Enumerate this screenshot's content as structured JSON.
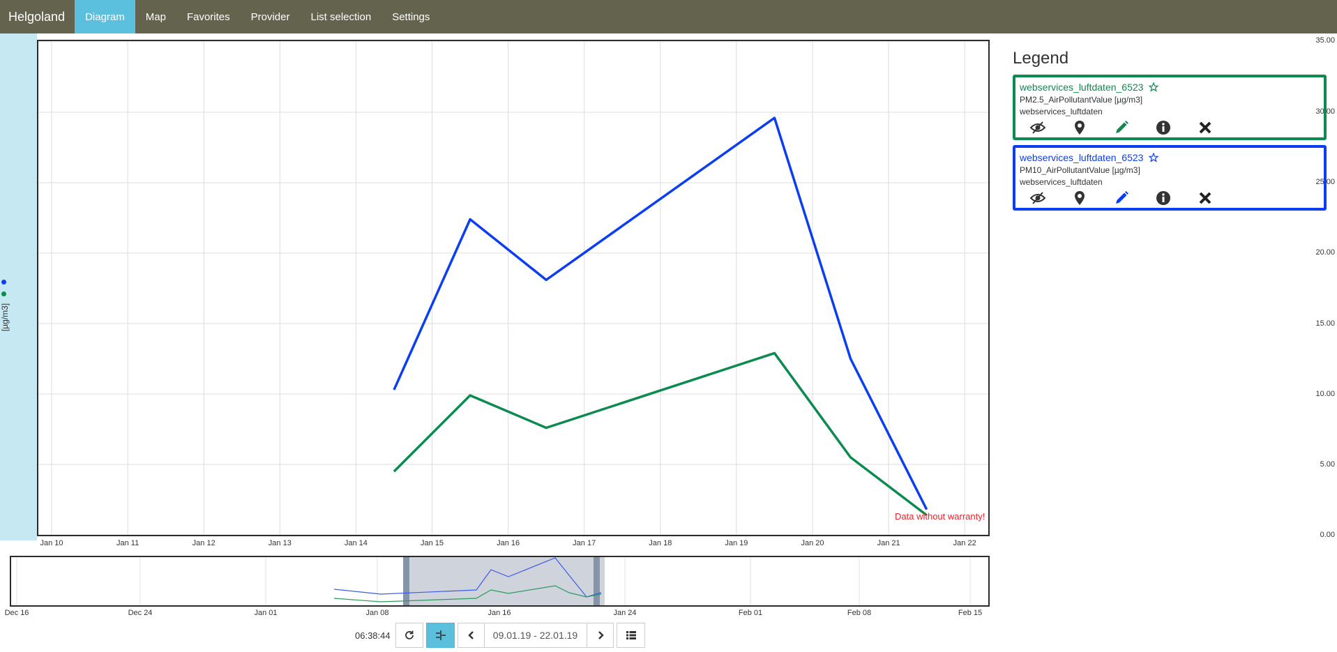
{
  "nav": {
    "brand": "Helgoland",
    "items": [
      {
        "label": "Diagram",
        "active": true
      },
      {
        "label": "Map",
        "active": false
      },
      {
        "label": "Favorites",
        "active": false
      },
      {
        "label": "Provider",
        "active": false
      },
      {
        "label": "List selection",
        "active": false
      },
      {
        "label": "Settings",
        "active": false
      }
    ]
  },
  "y_axis": {
    "unit": "[µg/m3]",
    "ticks": [
      "0.00",
      "5.00",
      "10.00",
      "15.00",
      "20.00",
      "25.00",
      "30.00",
      "35.00"
    ]
  },
  "chart_data": {
    "type": "line",
    "ylabel": "[µg/m3]",
    "ylim": [
      0,
      35
    ],
    "xlim": [
      "2019-01-09 18:00",
      "2019-01-22 06:00"
    ],
    "x_tick_labels": [
      "Jan 10",
      "Jan 11",
      "Jan 12",
      "Jan 13",
      "Jan 14",
      "Jan 15",
      "Jan 16",
      "Jan 17",
      "Jan 18",
      "Jan 19",
      "Jan 20",
      "Jan 21",
      "Jan 22"
    ],
    "x": [
      "2019-01-14 12:00",
      "2019-01-15 12:00",
      "2019-01-16 12:00",
      "2019-01-19 12:00",
      "2019-01-20 12:00",
      "2019-01-21 12:00"
    ],
    "x_days": [
      4.5,
      5.5,
      6.5,
      9.5,
      10.5,
      11.5
    ],
    "series": [
      {
        "name": "PM10_AirPollutantValue",
        "color": "#0b3ef0",
        "values": [
          10.3,
          22.4,
          18.1,
          29.6,
          12.5,
          1.8
        ]
      },
      {
        "name": "PM2.5_AirPollutantValue",
        "color": "#0d8a50",
        "values": [
          4.5,
          9.9,
          7.6,
          12.9,
          5.5,
          1.4
        ]
      }
    ]
  },
  "overview": {
    "tick_labels": [
      "Dec 16",
      "Dec 24",
      "Jan 01",
      "Jan 08",
      "Jan 16",
      "Jan 24",
      "Feb 01",
      "Feb 08",
      "Feb 15"
    ]
  },
  "warranty": "Data without warranty!",
  "controls": {
    "clock": "06:38:44",
    "range": "09.01.19 - 22.01.19"
  },
  "legend": {
    "title": "Legend",
    "entries": [
      {
        "title": "webservices_luftdaten_6523",
        "phenomenon": "PM2.5_AirPollutantValue [µg/m3]",
        "provider": "webservices_luftdaten",
        "color": "#0d8a50"
      },
      {
        "title": "webservices_luftdaten_6523",
        "phenomenon": "PM10_AirPollutantValue [µg/m3]",
        "provider": "webservices_luftdaten",
        "color": "#0b3ef0"
      }
    ]
  }
}
